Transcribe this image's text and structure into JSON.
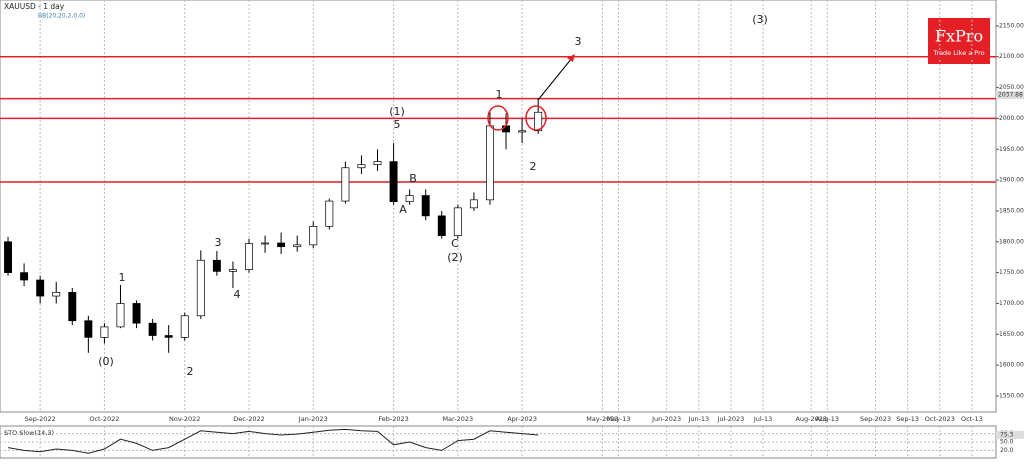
{
  "chart_data": {
    "type": "candlestick",
    "title": "XAUUSD - 1 day",
    "subtitle": "BB(20,20,2,0,0)",
    "brand": {
      "name": "FxPro",
      "tagline": "Trade Like a Pro",
      "color": "#e41f26"
    },
    "categories": [
      null,
      null,
      "Sep-2022",
      null,
      null,
      null,
      "Oct-2022",
      null,
      null,
      null,
      null,
      "Nov-2022",
      null,
      null,
      null,
      "Dec-2022",
      null,
      null,
      null,
      "Jan-2023",
      null,
      null,
      null,
      null,
      "Feb-2023",
      null,
      null,
      null,
      "Mar-2023",
      null,
      null,
      null,
      "Apr-2023",
      null,
      null,
      null,
      null,
      "May-2023",
      "May-13",
      null,
      null,
      "Jun-2023",
      null,
      "Jun-13",
      null,
      "Jul-2023",
      null,
      "Jul-13",
      null,
      null,
      "Aug-2023",
      "Aug-13",
      null,
      null,
      "Sep-2023",
      null,
      "Sep-13",
      null,
      "Oct-2023",
      null,
      "Oct-13",
      null
    ],
    "ohlc": {
      "open": [
        1800,
        1750,
        1738,
        1712,
        1718,
        1672,
        1645,
        1662,
        1700,
        1668,
        1648,
        1645,
        1680,
        1770,
        1752,
        1755,
        1797,
        1798,
        1792,
        1795,
        1825,
        1866,
        1920,
        1925,
        1930,
        1865,
        1875,
        1842,
        1810,
        1855,
        1868,
        1988,
        1978,
        1980,
        null,
        null,
        null,
        null,
        null,
        null,
        null,
        null,
        null,
        null,
        null,
        null,
        null,
        null,
        null,
        null,
        null,
        null,
        null,
        null,
        null,
        null,
        null,
        null,
        null,
        null,
        null,
        null
      ],
      "high": [
        1808,
        1765,
        1745,
        1735,
        1725,
        1680,
        1668,
        1730,
        1705,
        1675,
        1665,
        1685,
        1786,
        1785,
        1768,
        1805,
        1810,
        1815,
        1810,
        1833,
        1870,
        1930,
        1940,
        1950,
        1960,
        1885,
        1885,
        1850,
        1860,
        1880,
        2010,
        2008,
        2000,
        2032,
        null,
        null,
        null,
        null,
        null,
        null,
        null,
        null,
        null,
        null,
        null,
        null,
        null,
        null,
        null,
        null,
        null,
        null,
        null,
        null,
        null,
        null,
        null,
        null,
        null,
        null,
        null,
        null
      ],
      "low": [
        1745,
        1728,
        1700,
        1700,
        1665,
        1620,
        1635,
        1660,
        1660,
        1640,
        1620,
        1640,
        1675,
        1745,
        1725,
        1750,
        1782,
        1780,
        1784,
        1790,
        1820,
        1862,
        1910,
        1915,
        1860,
        1860,
        1835,
        1805,
        1805,
        1850,
        1860,
        1950,
        1960,
        1975,
        null,
        null,
        null,
        null,
        null,
        null,
        null,
        null,
        null,
        null,
        null,
        null,
        null,
        null,
        null,
        null,
        null,
        null,
        null,
        null,
        null,
        null,
        null,
        null,
        null,
        null,
        null,
        null
      ],
      "close": [
        1750,
        1738,
        1712,
        1718,
        1672,
        1645,
        1662,
        1700,
        1668,
        1648,
        1645,
        1680,
        1770,
        1752,
        1755,
        1797,
        1798,
        1792,
        1795,
        1825,
        1866,
        1920,
        1925,
        1930,
        1865,
        1875,
        1842,
        1810,
        1855,
        1868,
        1988,
        1978,
        1980,
        2010,
        null,
        null,
        null,
        null,
        null,
        null,
        null,
        null,
        null,
        null,
        null,
        null,
        null,
        null,
        null,
        null,
        null,
        null,
        null,
        null,
        null,
        null,
        null,
        null,
        null,
        null,
        null,
        null
      ]
    },
    "ylim": [
      1524,
      2192
    ],
    "yticks": [
      {
        "value": 1550,
        "label": "1550.00"
      },
      {
        "value": 1600,
        "label": "1600.00"
      },
      {
        "value": 1650,
        "label": "1650.00"
      },
      {
        "value": 1700,
        "label": "1700.00"
      },
      {
        "value": 1750,
        "label": "1750.00"
      },
      {
        "value": 1800,
        "label": "1800.00"
      },
      {
        "value": 1850,
        "label": "1850.00"
      },
      {
        "value": 1900,
        "label": "1900.00"
      },
      {
        "value": 1950,
        "label": "1950.00"
      },
      {
        "value": 2000,
        "label": "2000.00"
      },
      {
        "value": 2050,
        "label": "2050.00"
      },
      {
        "value": 2100,
        "label": "2100.00"
      },
      {
        "value": 2150,
        "label": "2150.00"
      }
    ],
    "levels": [
      2100,
      2032,
      2000,
      1897
    ],
    "level_color": "#e41f26",
    "last_price": 2037.88,
    "annotations": [
      "(0)",
      "1",
      "2",
      "3",
      "4",
      "(1)",
      "5",
      "A",
      "B",
      "C",
      "(2)",
      "1",
      "2",
      "3",
      "(3)"
    ],
    "oscillator": {
      "title": "STO Slow(14,3)",
      "color": "#222222",
      "values": [
        30,
        20,
        15,
        25,
        20,
        10,
        25,
        60,
        45,
        20,
        30,
        60,
        90,
        85,
        80,
        88,
        80,
        75,
        78,
        85,
        92,
        95,
        90,
        88,
        40,
        50,
        30,
        20,
        55,
        60,
        90,
        85,
        80,
        75,
        null,
        null,
        null,
        null,
        null,
        null,
        null,
        null,
        null,
        null,
        null,
        null,
        null,
        null,
        null,
        null,
        null,
        null,
        null,
        null,
        null,
        null,
        null,
        null,
        null,
        null,
        null,
        null
      ],
      "ylim": [
        0,
        100
      ],
      "yticks": [
        {
          "value": 20,
          "label": "20.0"
        },
        {
          "value": 50,
          "label": "50.0"
        },
        {
          "value": 80,
          "label": "80.0"
        }
      ],
      "current": 75.3
    }
  }
}
